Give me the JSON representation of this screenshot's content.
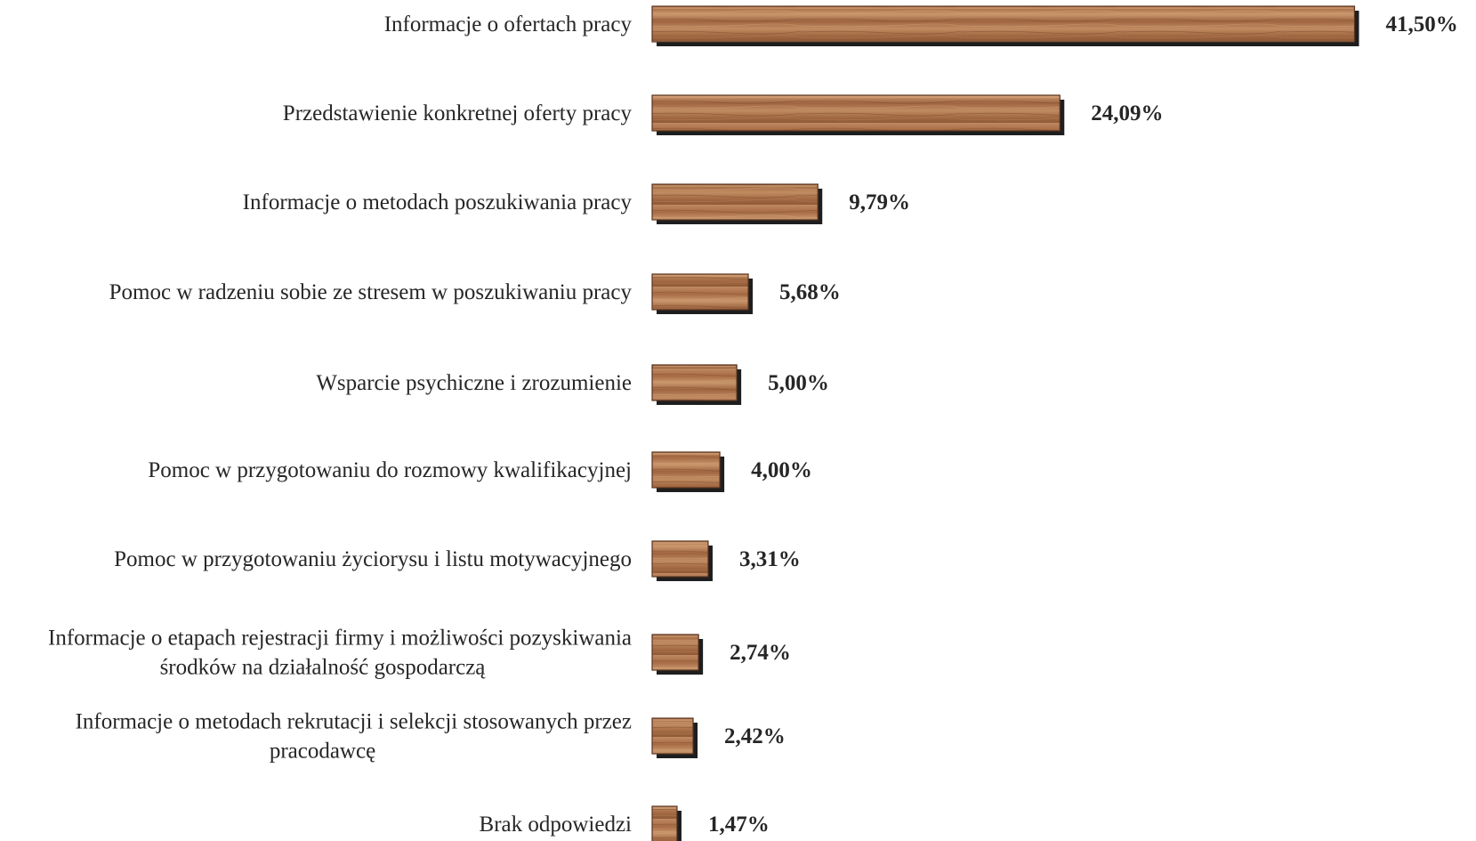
{
  "chart_data": {
    "type": "bar",
    "orientation": "horizontal",
    "title": "",
    "xlabel": "",
    "ylabel": "",
    "grid": false,
    "legend": "none",
    "categories": [
      [
        "Informacje o ofertach pracy"
      ],
      [
        "Przedstawienie konkretnej oferty pracy"
      ],
      [
        "Informacje o metodach poszukiwania pracy"
      ],
      [
        "Pomoc w radzeniu sobie ze stresem w poszukiwaniu pracy"
      ],
      [
        "Wsparcie psychiczne i zrozumienie"
      ],
      [
        "Pomoc w przygotowaniu do rozmowy kwalifikacyjnej"
      ],
      [
        "Pomoc w przygotowaniu życiorysu i listu motywacyjnego"
      ],
      [
        "Informacje o etapach rejestracji firmy i możliwości pozyskiwania",
        "środków na działalność gospodarczą"
      ],
      [
        "Informacje o metodach rekrutacji i selekcji stosowanych przez",
        "pracodawcę"
      ],
      [
        "Brak odpowiedzi"
      ]
    ],
    "values": [
      41.5,
      24.09,
      9.79,
      5.68,
      5.0,
      4.0,
      3.31,
      2.74,
      2.42,
      1.47
    ],
    "value_labels": [
      "41,50%",
      "24,09%",
      "9,79%",
      "5,68%",
      "5,00%",
      "4,00%",
      "3,31%",
      "2,74%",
      "2,42%",
      "1,47%"
    ],
    "xlim": [
      0,
      42
    ],
    "colors": {
      "bar_base": "#a96e46",
      "bar_light": "#c8946a",
      "bar_dark": "#7a4a2c",
      "shadow": "#1e1e1e",
      "text": "#262626"
    }
  }
}
